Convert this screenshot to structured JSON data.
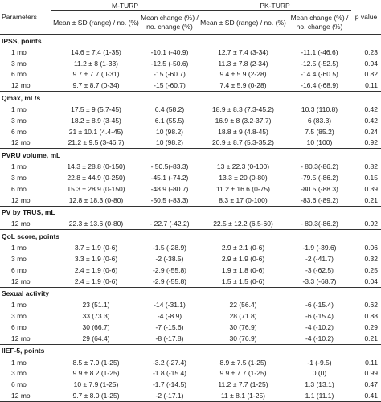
{
  "header": {
    "parameters": "Parameters",
    "group1": "M-TURP",
    "group2": "PK-TURP",
    "p_value": "p value",
    "col_mean_1": "Mean ± SD (range) / no. (%)",
    "col_change_1": "Mean change (%) / no. change (%)",
    "col_mean_2": "Mean ± SD (range) / no. (%)",
    "col_change_2": "Mean change (%) / no. change (%)"
  },
  "sections": [
    {
      "title": "IPSS, points",
      "rows": [
        {
          "label": "1 mo",
          "m_mean": "14.6 ± 7.4 (1-35)",
          "m_change": "-10.1 (-40.9)",
          "pk_mean": "12.7 ± 7.4 (3-34)",
          "pk_change": "-11.1 (-46.6)",
          "p": "0.23"
        },
        {
          "label": "3 mo",
          "m_mean": "11.2 ± 8 (1-33)",
          "m_change": "-12.5 (-50.6)",
          "pk_mean": "11.3 ± 7.8 (2-34)",
          "pk_change": "-12.5 (-52.5)",
          "p": "0.94"
        },
        {
          "label": "6 mo",
          "m_mean": "9.7 ± 7.7 (0-31)",
          "m_change": "-15 (-60.7)",
          "pk_mean": "9.4 ± 5.9 (2-28)",
          "pk_change": "-14.4 (-60.5)",
          "p": "0.82"
        },
        {
          "label": "12 mo",
          "m_mean": "9.7 ± 8.7 (0-34)",
          "m_change": "-15 (-60.7)",
          "pk_mean": "7.4 ± 5.9 (0-28)",
          "pk_change": "-16.4 (-68.9)",
          "p": "0.11"
        }
      ]
    },
    {
      "title": "Qmax, mL/s",
      "rows": [
        {
          "label": "1 mo",
          "m_mean": "17.5 ± 9 (5.7-45)",
          "m_change": "6.4 (58.2)",
          "pk_mean": "18.9 ± 8.3 (7.3-45.2)",
          "pk_change": "10.3 (110.8)",
          "p": "0.42"
        },
        {
          "label": "3 mo",
          "m_mean": "18.2 ± 8.9 (3-45)",
          "m_change": "6.1 (55.5)",
          "pk_mean": "16.9 ± 8 (3.2-37.7)",
          "pk_change": "6 (83.3)",
          "p": "0.42"
        },
        {
          "label": "6 mo",
          "m_mean": "21 ± 10.1 (4.4-45)",
          "m_change": "10 (98.2)",
          "pk_mean": "18.8 ± 9 (4.8-45)",
          "pk_change": "7.5 (85.2)",
          "p": "0.24"
        },
        {
          "label": "12 mo",
          "m_mean": "21.2 ± 9.5 (3-46.7)",
          "m_change": "10 (98.2)",
          "pk_mean": "20.9 ± 8.7 (5.3-35.2)",
          "pk_change": "10 (100)",
          "p": "0.92"
        }
      ]
    },
    {
      "title": "PVRU volume, mL",
      "rows": [
        {
          "label": "1 mo",
          "m_mean": "14.3 ± 28.8 (0-150)",
          "m_change": "- 50.5(-83.3)",
          "pk_mean": "13 ± 22.3 (0-100)",
          "pk_change": "- 80.3(-86.2)",
          "p": "0.82"
        },
        {
          "label": "3 mo",
          "m_mean": "22.8 ± 44.9 (0-250)",
          "m_change": "-45.1 (-74.2)",
          "pk_mean": "13.3 ± 20 (0-80)",
          "pk_change": "-79.5 (-86.2)",
          "p": "0.15"
        },
        {
          "label": "6 mo",
          "m_mean": "15.3 ± 28.9 (0-150)",
          "m_change": "-48.9 (-80.7)",
          "pk_mean": "11.2 ± 16.6 (0-75)",
          "pk_change": "-80.5 (-88.3)",
          "p": "0.39"
        },
        {
          "label": "12 mo",
          "m_mean": "12.8 ± 18.3 (0-80)",
          "m_change": "-50.5 (-83.3)",
          "pk_mean": "8.3 ± 17 (0-100)",
          "pk_change": "-83.6 (-89.2)",
          "p": "0.21"
        }
      ]
    },
    {
      "title": "PV by TRUS, mL",
      "rows": [
        {
          "label": "12 mo",
          "m_mean": "22.3 ± 13.6 (0-80)",
          "m_change": "- 22.7 (-42.2)",
          "pk_mean": "22.5 ± 12.2 (6.5-60)",
          "pk_change": "- 80.3(-86.2)",
          "p": "0.92"
        }
      ]
    },
    {
      "title": "QoL score, points",
      "rows": [
        {
          "label": "1 mo",
          "m_mean": "3.7 ± 1.9 (0-6)",
          "m_change": "-1.5 (-28.9)",
          "pk_mean": "2.9 ± 2.1 (0-6)",
          "pk_change": "-1.9 (-39.6)",
          "p": "0.06"
        },
        {
          "label": "3 mo",
          "m_mean": "3.3 ± 1.9 (0-6)",
          "m_change": "-2 (-38.5)",
          "pk_mean": "2.9 ± 1.9 (0-6)",
          "pk_change": "-2 (-41.7)",
          "p": "0.32"
        },
        {
          "label": "6 mo",
          "m_mean": "2.4 ± 1.9 (0-6)",
          "m_change": "-2.9 (-55.8)",
          "pk_mean": "1.9 ± 1.8 (0-6)",
          "pk_change": "-3 (-62.5)",
          "p": "0.25"
        },
        {
          "label": "12 mo",
          "m_mean": "2.4 ± 1.9 (0-6)",
          "m_change": "-2.9 (-55.8)",
          "pk_mean": "1.5 ± 1.5 (0-6)",
          "pk_change": "-3.3 (-68.7)",
          "p": "0.04"
        }
      ]
    },
    {
      "title": "Sexual activity",
      "rows": [
        {
          "label": "1 mo",
          "m_mean": "23 (51.1)",
          "m_change": "-14 (-31.1)",
          "pk_mean": "22 (56.4)",
          "pk_change": "-6 (-15.4)",
          "p": "0.62"
        },
        {
          "label": "3 mo",
          "m_mean": "33 (73.3)",
          "m_change": "-4 (-8.9)",
          "pk_mean": "28 (71.8)",
          "pk_change": "-6 (-15.4)",
          "p": "0.88"
        },
        {
          "label": "6 mo",
          "m_mean": "30 (66.7)",
          "m_change": "-7 (-15.6)",
          "pk_mean": "30 (76.9)",
          "pk_change": "-4 (-10.2)",
          "p": "0.29"
        },
        {
          "label": "12 mo",
          "m_mean": "29 (64.4)",
          "m_change": "-8 (-17.8)",
          "pk_mean": "30 (76.9)",
          "pk_change": "-4 (-10.2)",
          "p": "0.21"
        }
      ]
    },
    {
      "title": "IIEF-5, points",
      "rows": [
        {
          "label": "1 mo",
          "m_mean": "8.5 ± 7.9 (1-25)",
          "m_change": "-3.2 (-27.4)",
          "pk_mean": "8.9 ± 7.5 (1-25)",
          "pk_change": "-1 (-9.5)",
          "p": "0.11"
        },
        {
          "label": "3 mo",
          "m_mean": "9.9 ± 8.2 (1-25)",
          "m_change": "-1.8 (-15.4)",
          "pk_mean": "9.9 ± 7.7 (1-25)",
          "pk_change": "0 (0)",
          "p": "0.99"
        },
        {
          "label": "6 mo",
          "m_mean": "10 ± 7.9 (1-25)",
          "m_change": "-1.7 (-14.5)",
          "pk_mean": "11.2 ± 7.7 (1-25)",
          "pk_change": "1.3 (13.1)",
          "p": "0.47"
        },
        {
          "label": "12 mo",
          "m_mean": "9.7 ± 8.0 (1-25)",
          "m_change": "-2 (-17.1)",
          "pk_mean": "11 ± 8.1 (1-25)",
          "pk_change": "1.1 (11.1)",
          "p": "0.41"
        }
      ]
    }
  ]
}
